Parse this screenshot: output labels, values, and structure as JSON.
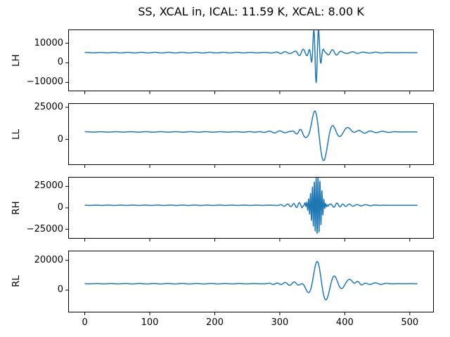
{
  "title": "SS, XCAL in, ICAL: 11.59 K, XCAL: 8.00 K",
  "chart_data": {
    "type": "line",
    "title": "SS, XCAL in, ICAL: 11.59 K, XCAL: 8.00 K",
    "line_color": "#1f77b4",
    "frame_color": "#000000",
    "legend": "none",
    "grid": false,
    "x": {
      "lim": [
        -25.5,
        537
      ],
      "ticks": [
        0,
        100,
        200,
        300,
        400,
        500
      ],
      "n_samples": 512
    },
    "subplots": [
      {
        "ylabel": "LH",
        "ylim": [
          -14500,
          17000
        ],
        "yticks": [
          -10000,
          0,
          10000
        ],
        "baseline": 5200,
        "bursts": [
          {
            "center": 356,
            "sigma": 5,
            "period": 7.5,
            "amp": 15200,
            "phase": 3.14159
          },
          {
            "center": 336,
            "sigma": 9,
            "period": 12,
            "amp": 1700
          },
          {
            "center": 381,
            "sigma": 10,
            "period": 13,
            "amp": 1400
          },
          {
            "center": 308,
            "sigma": 10,
            "period": 14,
            "amp": 600
          },
          {
            "center": 412,
            "sigma": 12,
            "period": 16,
            "amp": 500
          },
          {
            "center": 448,
            "sigma": 12,
            "period": 18,
            "amp": 250
          },
          {
            "center": 150,
            "sigma": 140,
            "period": 21,
            "amp": 180
          }
        ]
      },
      {
        "ylabel": "LL",
        "ylim": [
          -19900,
          28100
        ],
        "yticks": [
          0,
          25000
        ],
        "baseline": 5800,
        "bursts": [
          {
            "center": 355,
            "sigma": 5,
            "amp": 19000
          },
          {
            "center": 367,
            "sigma": 6,
            "amp": -23500
          },
          {
            "center": 343,
            "sigma": 4,
            "amp": -5000
          },
          {
            "center": 380,
            "sigma": 5,
            "amp": 7000
          },
          {
            "center": 392,
            "sigma": 5,
            "amp": -4500
          },
          {
            "center": 403,
            "sigma": 6,
            "amp": 3200
          },
          {
            "center": 332,
            "sigma": 8,
            "period": 12,
            "amp": 1800
          },
          {
            "center": 300,
            "sigma": 25,
            "period": 16,
            "amp": 700
          },
          {
            "center": 422,
            "sigma": 14,
            "period": 18,
            "amp": 1100
          },
          {
            "center": 458,
            "sigma": 15,
            "period": 20,
            "amp": 450
          },
          {
            "center": 140,
            "sigma": 140,
            "period": 23,
            "amp": 200
          }
        ]
      },
      {
        "ylabel": "RH",
        "ylim": [
          -36000,
          36000
        ],
        "yticks": [
          -25000,
          0,
          25000
        ],
        "baseline": 3000,
        "bursts": [
          {
            "center": 356,
            "sigma": 7,
            "period": 2.9,
            "amp": 30500
          },
          {
            "center": 362,
            "sigma": 5,
            "period": 3.3,
            "amp": 7000
          },
          {
            "center": 330,
            "sigma": 7,
            "period": 9,
            "amp": 3200
          },
          {
            "center": 312,
            "sigma": 8,
            "period": 11,
            "amp": 1400
          },
          {
            "center": 388,
            "sigma": 8,
            "period": 10,
            "amp": 2800
          },
          {
            "center": 407,
            "sigma": 10,
            "period": 13,
            "amp": 1300
          },
          {
            "center": 432,
            "sigma": 12,
            "period": 15,
            "amp": 600
          },
          {
            "center": 150,
            "sigma": 140,
            "period": 19,
            "amp": 200
          }
        ]
      },
      {
        "ylabel": "RL",
        "ylim": [
          -15000,
          26500
        ],
        "yticks": [
          0,
          20000
        ],
        "baseline": 4300,
        "bursts": [
          {
            "center": 358,
            "sigma": 5.5,
            "amp": 17000
          },
          {
            "center": 346,
            "sigma": 5,
            "amp": -7000
          },
          {
            "center": 370,
            "sigma": 6,
            "amp": -12500
          },
          {
            "center": 383,
            "sigma": 5,
            "amp": 6500
          },
          {
            "center": 395,
            "sigma": 5,
            "amp": -4200
          },
          {
            "center": 406,
            "sigma": 6,
            "amp": 3000
          },
          {
            "center": 420,
            "sigma": 7,
            "period": 14,
            "amp": 1400
          },
          {
            "center": 447,
            "sigma": 14,
            "period": 18,
            "amp": 600
          },
          {
            "center": 322,
            "sigma": 12,
            "period": 14,
            "amp": 1100
          },
          {
            "center": 296,
            "sigma": 10,
            "period": 13,
            "amp": 450
          },
          {
            "center": 150,
            "sigma": 140,
            "period": 22,
            "amp": 190
          }
        ]
      }
    ]
  }
}
